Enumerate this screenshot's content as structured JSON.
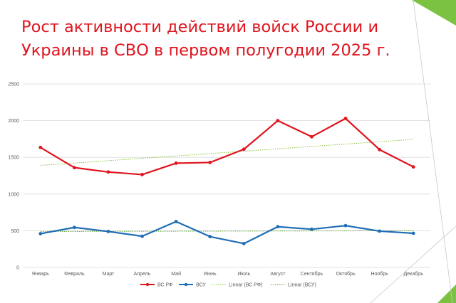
{
  "slide": {
    "title": "Рост активности действий войск России и Украины в СВО в первом полугодии 2025 г.",
    "accent_color": "#7cc242"
  },
  "chart_data": {
    "type": "line",
    "categories": [
      "Январь",
      "Февраль",
      "Март",
      "Апрель",
      "Май",
      "Июнь",
      "Июль",
      "Август",
      "Сентябрь",
      "Октябрь",
      "Ноябрь",
      "Декабрь"
    ],
    "ylim": [
      0,
      2500
    ],
    "yticks": [
      0,
      500,
      1000,
      1500,
      2000,
      2500
    ],
    "grid": true,
    "legend_position": "bottom",
    "series": [
      {
        "name": "ВС РФ",
        "color": "#e0141e",
        "values": [
          1635,
          1360,
          1300,
          1265,
          1420,
          1430,
          1610,
          2000,
          1780,
          2030,
          1605,
          1370
        ]
      },
      {
        "name": "ВСУ",
        "color": "#1f6db5",
        "values": [
          460,
          545,
          490,
          425,
          625,
          420,
          325,
          555,
          520,
          570,
          495,
          465
        ]
      }
    ],
    "trendlines": [
      {
        "name": "Linear (ВС РФ)",
        "color": "#8dc63f",
        "start": 1390,
        "end": 1745
      },
      {
        "name": "Linear (ВСУ)",
        "color": "#5a9e2f",
        "start": 490,
        "end": 500
      }
    ]
  }
}
